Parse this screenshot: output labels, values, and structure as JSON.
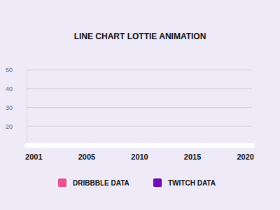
{
  "chart_data": {
    "type": "line",
    "title": "LINE CHART LOTTIE ANIMATION",
    "categories": [
      "2001",
      "2005",
      "2010",
      "2015",
      "2020"
    ],
    "series": [
      {
        "name": "DRIBBBLE DATA",
        "color": "#e8518d",
        "values": [
          null,
          null,
          null,
          null,
          null
        ]
      },
      {
        "name": "TWITCH DATA",
        "color": "#6c0fb0",
        "values": [
          null,
          null,
          null,
          null,
          null
        ]
      }
    ],
    "ylim": [
      10,
      50
    ],
    "yticks": [
      20,
      30,
      40,
      50
    ],
    "grid": true,
    "legend": "bottom"
  }
}
